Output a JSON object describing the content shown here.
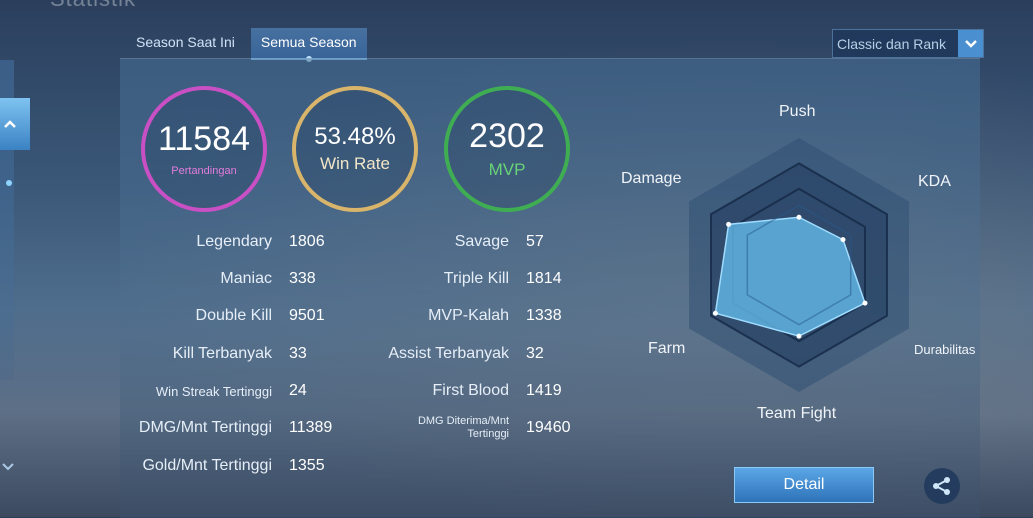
{
  "header": {
    "title": "Statistik"
  },
  "tabs": [
    {
      "label": "Season Saat Ini",
      "active": false
    },
    {
      "label": "Semua Season",
      "active": true
    }
  ],
  "filter": {
    "selected": "Classic dan Rank"
  },
  "summary": {
    "matches": {
      "value": "11584",
      "label": "Pertandingan",
      "color": "#c94fc4"
    },
    "win_rate": {
      "value": "53.48%",
      "label": "Win Rate",
      "color": "#d8b56a"
    },
    "mvp": {
      "value": "2302",
      "label": "MVP",
      "color": "#3fae53"
    }
  },
  "stats_left": [
    {
      "label": "Legendary",
      "value": "1806"
    },
    {
      "label": "Maniac",
      "value": "338"
    },
    {
      "label": "Double Kill",
      "value": "9501"
    },
    {
      "label": "Kill Terbanyak",
      "value": "33"
    },
    {
      "label": "Win Streak Tertinggi",
      "value": "24"
    },
    {
      "label": "DMG/Mnt Tertinggi",
      "value": "11389"
    },
    {
      "label": "Gold/Mnt Tertinggi",
      "value": "1355"
    }
  ],
  "stats_right": [
    {
      "label": "Savage",
      "value": "57"
    },
    {
      "label": "Triple Kill",
      "value": "1814"
    },
    {
      "label": "MVP-Kalah",
      "value": "1338"
    },
    {
      "label": "Assist Terbanyak",
      "value": "32"
    },
    {
      "label": "First Blood",
      "value": "1419"
    },
    {
      "label": "DMG Diterima/Mnt Tertinggi",
      "value": "19460"
    }
  ],
  "radar": {
    "axes": [
      "Push",
      "KDA",
      "Durabilitas",
      "Team Fight",
      "Farm",
      "Damage"
    ],
    "values": [
      0.47,
      0.5,
      0.75,
      0.7,
      0.95,
      0.8
    ],
    "fill_color": "#5fb3e0"
  },
  "buttons": {
    "detail": "Detail"
  },
  "icons": {
    "share": "share-icon",
    "dropdown": "chevron-down-icon",
    "side": "chevron-up-icon"
  }
}
